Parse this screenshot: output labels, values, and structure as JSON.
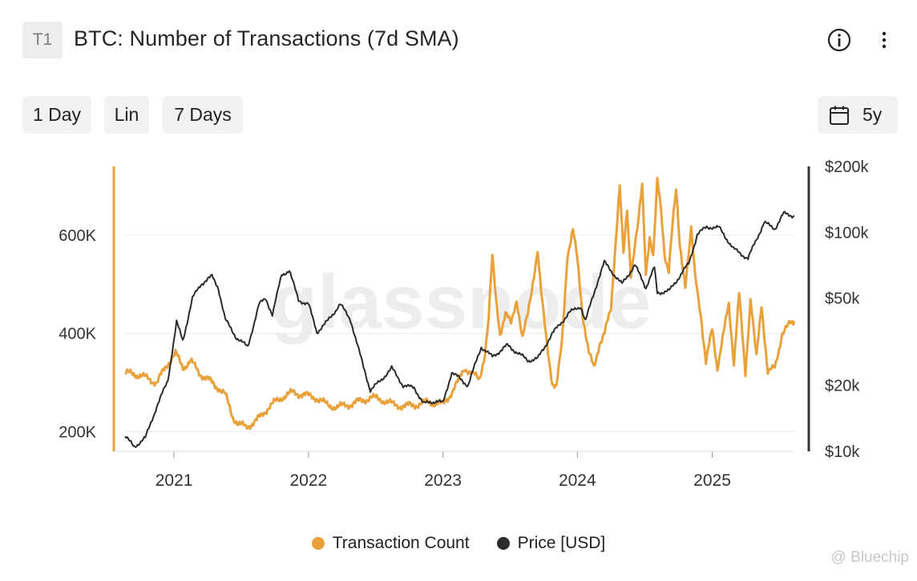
{
  "header": {
    "tier_badge": "T1",
    "title": "BTC: Number of Transactions (7d SMA)"
  },
  "toolbar": {
    "resolution": "1 Day",
    "scale": "Lin",
    "sma": "7 Days",
    "range": "5y"
  },
  "chart_data": {
    "type": "line",
    "title": "BTC: Number of Transactions (7d SMA)",
    "watermark": "glassnode",
    "x_range": [
      "2020-08-21",
      "2025-08-12"
    ],
    "x_ticks": [
      "2021",
      "2022",
      "2023",
      "2024",
      "2025"
    ],
    "y_left": {
      "ticks": [
        200000,
        400000,
        600000
      ],
      "tick_labels": [
        "200K",
        "400K",
        "600K"
      ],
      "range": [
        160000,
        740000
      ],
      "color": "#E9A23B"
    },
    "y_right": {
      "scale": "log",
      "ticks": [
        10000,
        20000,
        50000,
        100000,
        200000
      ],
      "tick_labels": [
        "$10k",
        "$20k",
        "$50k",
        "$100k",
        "$200k"
      ],
      "range": [
        10000,
        200000
      ],
      "color": "#333333"
    },
    "grid": true,
    "legend_position": "bottom-center",
    "series": [
      {
        "name": "Transaction Count",
        "axis": "left",
        "color": "#E9A23B",
        "points": [
          [
            "2020-08-21",
            320000
          ],
          [
            "2020-10-01",
            315000
          ],
          [
            "2020-11-15",
            300000
          ],
          [
            "2020-12-20",
            345000
          ],
          [
            "2021-01-05",
            360000
          ],
          [
            "2021-01-25",
            330000
          ],
          [
            "2021-02-15",
            345000
          ],
          [
            "2021-03-10",
            320000
          ],
          [
            "2021-04-05",
            305000
          ],
          [
            "2021-05-01",
            290000
          ],
          [
            "2021-05-20",
            275000
          ],
          [
            "2021-06-10",
            230000
          ],
          [
            "2021-06-25",
            215000
          ],
          [
            "2021-07-15",
            210000
          ],
          [
            "2021-08-10",
            220000
          ],
          [
            "2021-09-15",
            250000
          ],
          [
            "2021-10-20",
            270000
          ],
          [
            "2021-11-20",
            280000
          ],
          [
            "2021-12-20",
            275000
          ],
          [
            "2022-01-20",
            270000
          ],
          [
            "2022-02-20",
            255000
          ],
          [
            "2022-03-20",
            250000
          ],
          [
            "2022-04-20",
            255000
          ],
          [
            "2022-05-20",
            262000
          ],
          [
            "2022-06-20",
            270000
          ],
          [
            "2022-07-20",
            265000
          ],
          [
            "2022-08-20",
            255000
          ],
          [
            "2022-09-20",
            252000
          ],
          [
            "2022-10-20",
            255000
          ],
          [
            "2022-11-20",
            260000
          ],
          [
            "2022-12-20",
            258000
          ],
          [
            "2023-01-01",
            255000
          ],
          [
            "2023-01-20",
            275000
          ],
          [
            "2023-02-10",
            300000
          ],
          [
            "2023-03-01",
            330000
          ],
          [
            "2023-03-20",
            320000
          ],
          [
            "2023-04-10",
            305000
          ],
          [
            "2023-04-25",
            360000
          ],
          [
            "2023-05-05",
            430000
          ],
          [
            "2023-05-15",
            555000
          ],
          [
            "2023-05-25",
            470000
          ],
          [
            "2023-06-05",
            400000
          ],
          [
            "2023-06-20",
            440000
          ],
          [
            "2023-07-05",
            420000
          ],
          [
            "2023-07-20",
            470000
          ],
          [
            "2023-08-05",
            390000
          ],
          [
            "2023-08-20",
            440000
          ],
          [
            "2023-09-05",
            520000
          ],
          [
            "2023-09-15",
            570000
          ],
          [
            "2023-09-25",
            480000
          ],
          [
            "2023-10-10",
            380000
          ],
          [
            "2023-10-25",
            300000
          ],
          [
            "2023-11-05",
            290000
          ],
          [
            "2023-11-20",
            380000
          ],
          [
            "2023-12-05",
            560000
          ],
          [
            "2023-12-20",
            610000
          ],
          [
            "2024-01-01",
            550000
          ],
          [
            "2024-01-15",
            440000
          ],
          [
            "2024-02-01",
            360000
          ],
          [
            "2024-02-15",
            330000
          ],
          [
            "2024-03-01",
            380000
          ],
          [
            "2024-03-15",
            400000
          ],
          [
            "2024-04-01",
            450000
          ],
          [
            "2024-04-15",
            600000
          ],
          [
            "2024-04-25",
            700000
          ],
          [
            "2024-05-05",
            560000
          ],
          [
            "2024-05-15",
            650000
          ],
          [
            "2024-05-25",
            520000
          ],
          [
            "2024-06-05",
            580000
          ],
          [
            "2024-06-15",
            630000
          ],
          [
            "2024-06-25",
            700000
          ],
          [
            "2024-07-05",
            520000
          ],
          [
            "2024-07-15",
            600000
          ],
          [
            "2024-07-25",
            560000
          ],
          [
            "2024-08-05",
            710000
          ],
          [
            "2024-08-15",
            650000
          ],
          [
            "2024-08-25",
            560000
          ],
          [
            "2024-09-05",
            530000
          ],
          [
            "2024-09-15",
            620000
          ],
          [
            "2024-09-25",
            690000
          ],
          [
            "2024-10-05",
            580000
          ],
          [
            "2024-10-20",
            500000
          ],
          [
            "2024-11-05",
            610000
          ],
          [
            "2024-11-15",
            520000
          ],
          [
            "2024-12-01",
            440000
          ],
          [
            "2024-12-15",
            340000
          ],
          [
            "2025-01-01",
            410000
          ],
          [
            "2025-01-15",
            330000
          ],
          [
            "2025-02-01",
            400000
          ],
          [
            "2025-02-15",
            460000
          ],
          [
            "2025-03-01",
            340000
          ],
          [
            "2025-03-15",
            480000
          ],
          [
            "2025-04-01",
            320000
          ],
          [
            "2025-04-15",
            470000
          ],
          [
            "2025-05-01",
            350000
          ],
          [
            "2025-05-15",
            460000
          ],
          [
            "2025-06-01",
            320000
          ],
          [
            "2025-06-20",
            330000
          ],
          [
            "2025-07-10",
            400000
          ],
          [
            "2025-08-01",
            420000
          ],
          [
            "2025-08-12",
            425000
          ]
        ]
      },
      {
        "name": "Price [USD]",
        "axis": "right",
        "color": "#2b2b2b",
        "points": [
          [
            "2020-08-21",
            11700
          ],
          [
            "2020-09-15",
            10500
          ],
          [
            "2020-10-15",
            11500
          ],
          [
            "2020-11-15",
            16000
          ],
          [
            "2020-12-15",
            21000
          ],
          [
            "2021-01-08",
            39000
          ],
          [
            "2021-01-25",
            32000
          ],
          [
            "2021-02-20",
            50000
          ],
          [
            "2021-03-15",
            58000
          ],
          [
            "2021-04-14",
            63000
          ],
          [
            "2021-05-01",
            56000
          ],
          [
            "2021-05-20",
            40000
          ],
          [
            "2021-06-20",
            33000
          ],
          [
            "2021-07-20",
            30000
          ],
          [
            "2021-08-20",
            47000
          ],
          [
            "2021-09-07",
            50000
          ],
          [
            "2021-09-25",
            42000
          ],
          [
            "2021-10-20",
            64000
          ],
          [
            "2021-11-10",
            67000
          ],
          [
            "2021-12-05",
            49000
          ],
          [
            "2022-01-01",
            47000
          ],
          [
            "2022-01-24",
            35000
          ],
          [
            "2022-02-20",
            39000
          ],
          [
            "2022-03-28",
            47000
          ],
          [
            "2022-04-25",
            40000
          ],
          [
            "2022-05-15",
            30000
          ],
          [
            "2022-06-18",
            19000
          ],
          [
            "2022-07-15",
            21000
          ],
          [
            "2022-08-15",
            24000
          ],
          [
            "2022-09-15",
            20000
          ],
          [
            "2022-10-15",
            19500
          ],
          [
            "2022-11-10",
            16500
          ],
          [
            "2022-12-15",
            17000
          ],
          [
            "2023-01-01",
            16600
          ],
          [
            "2023-01-25",
            23000
          ],
          [
            "2023-03-10",
            20000
          ],
          [
            "2023-04-15",
            30000
          ],
          [
            "2023-05-15",
            27000
          ],
          [
            "2023-06-25",
            30500
          ],
          [
            "2023-08-20",
            26000
          ],
          [
            "2023-09-15",
            26500
          ],
          [
            "2023-10-25",
            34500
          ],
          [
            "2023-12-10",
            43000
          ],
          [
            "2024-01-10",
            46000
          ],
          [
            "2024-01-23",
            39500
          ],
          [
            "2024-02-28",
            62000
          ],
          [
            "2024-03-14",
            73000
          ],
          [
            "2024-05-01",
            58000
          ],
          [
            "2024-06-05",
            71000
          ],
          [
            "2024-07-05",
            56000
          ],
          [
            "2024-07-28",
            69000
          ],
          [
            "2024-08-05",
            53000
          ],
          [
            "2024-09-06",
            54000
          ],
          [
            "2024-10-29",
            72000
          ],
          [
            "2024-11-22",
            98000
          ],
          [
            "2024-12-17",
            106000
          ],
          [
            "2025-01-20",
            105000
          ],
          [
            "2025-02-28",
            84000
          ],
          [
            "2025-04-08",
            76000
          ],
          [
            "2025-05-22",
            111000
          ],
          [
            "2025-06-20",
            104000
          ],
          [
            "2025-07-14",
            122000
          ],
          [
            "2025-08-12",
            119000
          ]
        ]
      }
    ]
  },
  "legend": {
    "items": [
      {
        "label": "Transaction Count",
        "color": "#E9A23B"
      },
      {
        "label": "Price [USD]",
        "color": "#2b2b2b"
      }
    ]
  },
  "credit": {
    "text": "@ Bluechip"
  },
  "icons": {
    "info": "info-icon",
    "more": "more-vertical-icon",
    "calendar": "calendar-icon"
  }
}
